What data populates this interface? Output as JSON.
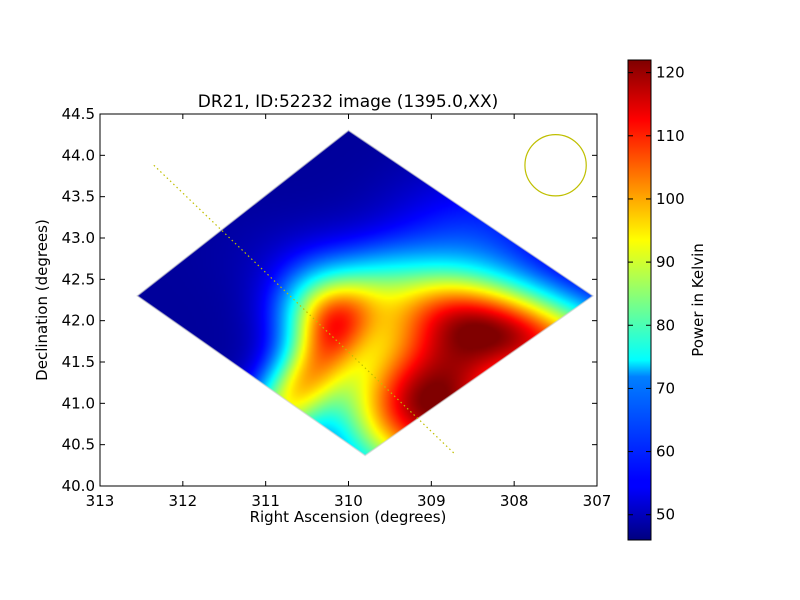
{
  "chart_data": {
    "type": "heatmap",
    "title": "DR21, ID:52232 image (1395.0,XX)",
    "xlabel": "Right Ascension (degrees)",
    "ylabel": "Declination (degrees)",
    "xlim": [
      313,
      307
    ],
    "ylim": [
      40.0,
      44.5
    ],
    "xticks": [
      "313",
      "312",
      "311",
      "310",
      "309",
      "308",
      "307"
    ],
    "yticks": [
      "40.0",
      "40.5",
      "41.0",
      "41.5",
      "42.0",
      "42.5",
      "43.0",
      "43.5",
      "44.0",
      "44.5"
    ],
    "colorbar": {
      "label": "Power in Kelvin",
      "range": [
        46,
        122
      ],
      "ticks": [
        "50",
        "60",
        "70",
        "80",
        "90",
        "100",
        "110",
        "120"
      ],
      "colormap": "jet"
    },
    "mapped_region": {
      "shape": "diamond",
      "corners": [
        [
          310.0,
          44.3
        ],
        [
          307.05,
          42.3
        ],
        [
          309.8,
          40.37
        ],
        [
          312.55,
          42.3
        ]
      ]
    },
    "cut_line": {
      "from": [
        312.35,
        43.88
      ],
      "to": [
        308.73,
        40.4
      ],
      "color": "#bfbf00"
    },
    "beam_circle": {
      "center": [
        307.5,
        43.88
      ],
      "radius_deg": 0.37,
      "color": "#bfbf00"
    },
    "intensity_model": {
      "background_level": 48,
      "hot_spot": {
        "ra": 309.0,
        "dec": 41.0,
        "peak": 122
      },
      "central_ridge": {
        "ra": 310.3,
        "dec": 42.1,
        "level": 80
      }
    }
  }
}
